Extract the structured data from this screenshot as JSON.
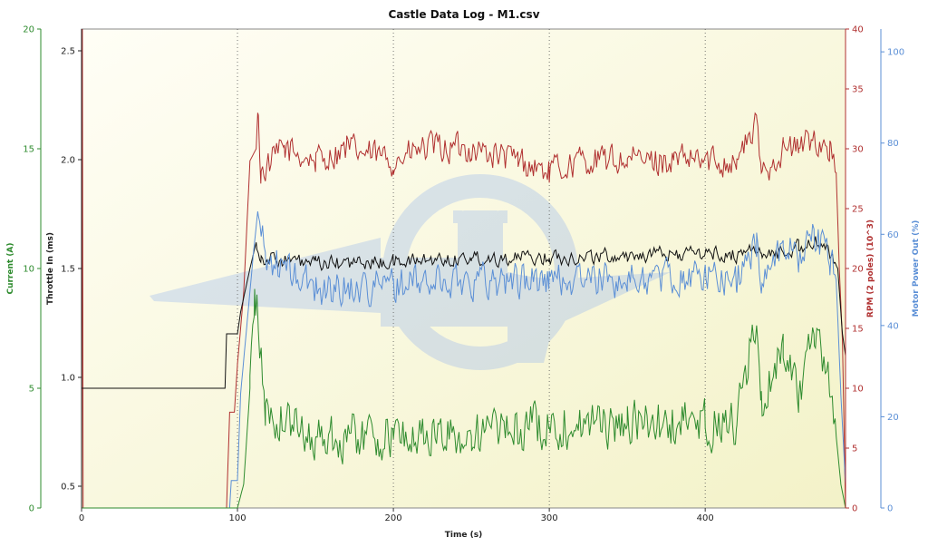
{
  "chart_data": {
    "type": "line",
    "title": "Castle Data Log - M1.csv",
    "xlabel": "Time (s)",
    "xlim": [
      0,
      490
    ],
    "x_ticks": [
      0,
      100,
      200,
      300,
      400
    ],
    "grid_x": true,
    "grid_y": false,
    "axes": {
      "current": {
        "label": "Current (A)",
        "range": [
          0,
          20
        ],
        "ticks": [
          0,
          5,
          10,
          15,
          20
        ],
        "side": "left",
        "color": "#2e8b2e"
      },
      "throttle": {
        "label": "Throttle In (ms)",
        "range": [
          0.4,
          2.6
        ],
        "ticks": [
          0.5,
          1.0,
          1.5,
          2.0,
          2.5
        ],
        "side": "left",
        "color": "#222222"
      },
      "rpm": {
        "label": "RPM (2 poles) (10^3)",
        "range": [
          0,
          40
        ],
        "ticks": [
          0,
          5,
          10,
          15,
          20,
          25,
          30,
          35,
          40
        ],
        "side": "right",
        "color": "#b03030"
      },
      "power": {
        "label": "Motor Power Out (%)",
        "range": [
          0,
          105
        ],
        "ticks": [
          0,
          20,
          40,
          60,
          80,
          100
        ],
        "side": "right",
        "color": "#5b8fd6"
      }
    },
    "series": [
      {
        "key": "rpm",
        "name": "RPM (2 poles) (10^3)",
        "axis": "rpm",
        "color": "#b03030",
        "points": [
          [
            0,
            0
          ],
          [
            0.5,
            40
          ],
          [
            1,
            0
          ],
          [
            93,
            0
          ],
          [
            95,
            8
          ],
          [
            98,
            8
          ],
          [
            100,
            12
          ],
          [
            104,
            18
          ],
          [
            108,
            29
          ],
          [
            112,
            30
          ],
          [
            113,
            33
          ],
          [
            115,
            28
          ],
          [
            130,
            30
          ],
          [
            150,
            29
          ],
          [
            170,
            30
          ],
          [
            200,
            29
          ],
          [
            220,
            30
          ],
          [
            250,
            30
          ],
          [
            280,
            29
          ],
          [
            300,
            28
          ],
          [
            320,
            29
          ],
          [
            350,
            29
          ],
          [
            380,
            29
          ],
          [
            400,
            29
          ],
          [
            420,
            29
          ],
          [
            433,
            32
          ],
          [
            436,
            28
          ],
          [
            450,
            30
          ],
          [
            460,
            30
          ],
          [
            470,
            31
          ],
          [
            480,
            30
          ],
          [
            484,
            28
          ],
          [
            486,
            20
          ],
          [
            488,
            14
          ],
          [
            490,
            0
          ]
        ],
        "noise": 1.3,
        "noise_start": 113,
        "noise_end": 484
      },
      {
        "key": "throttle",
        "name": "Throttle In (ms)",
        "axis": "throttle",
        "color": "#111111",
        "points": [
          [
            0,
            0.95
          ],
          [
            92,
            0.95
          ],
          [
            93,
            1.2
          ],
          [
            100,
            1.2
          ],
          [
            102,
            1.3
          ],
          [
            108,
            1.5
          ],
          [
            112,
            1.62
          ],
          [
            115,
            1.55
          ],
          [
            150,
            1.52
          ],
          [
            200,
            1.53
          ],
          [
            250,
            1.55
          ],
          [
            300,
            1.55
          ],
          [
            350,
            1.56
          ],
          [
            400,
            1.57
          ],
          [
            420,
            1.56
          ],
          [
            433,
            1.6
          ],
          [
            436,
            1.55
          ],
          [
            460,
            1.6
          ],
          [
            470,
            1.62
          ],
          [
            480,
            1.57
          ],
          [
            485,
            1.5
          ],
          [
            488,
            1.2
          ],
          [
            490,
            1.1
          ]
        ],
        "noise": 0.035,
        "noise_start": 112,
        "noise_end": 484
      },
      {
        "key": "power",
        "name": "Motor Power Out (%)",
        "axis": "power",
        "color": "#5b8fd6",
        "points": [
          [
            0,
            0
          ],
          [
            95,
            0
          ],
          [
            96,
            6
          ],
          [
            100,
            6
          ],
          [
            102,
            25
          ],
          [
            106,
            40
          ],
          [
            110,
            55
          ],
          [
            113,
            65
          ],
          [
            118,
            55
          ],
          [
            150,
            48
          ],
          [
            200,
            49
          ],
          [
            250,
            50
          ],
          [
            300,
            50
          ],
          [
            350,
            50
          ],
          [
            400,
            51
          ],
          [
            420,
            50
          ],
          [
            433,
            58
          ],
          [
            436,
            50
          ],
          [
            450,
            58
          ],
          [
            460,
            55
          ],
          [
            470,
            60
          ],
          [
            480,
            55
          ],
          [
            484,
            50
          ],
          [
            487,
            25
          ],
          [
            490,
            5
          ]
        ],
        "noise": 4.0,
        "noise_start": 113,
        "noise_end": 484
      },
      {
        "key": "current",
        "name": "Current (A)",
        "axis": "current",
        "color": "#2e8b2e",
        "points": [
          [
            0,
            0
          ],
          [
            100,
            0
          ],
          [
            104,
            1
          ],
          [
            108,
            5
          ],
          [
            111,
            9
          ],
          [
            113,
            8
          ],
          [
            118,
            4
          ],
          [
            150,
            3
          ],
          [
            200,
            3
          ],
          [
            250,
            3
          ],
          [
            300,
            3.5
          ],
          [
            350,
            3.5
          ],
          [
            400,
            3.5
          ],
          [
            420,
            3.5
          ],
          [
            433,
            8
          ],
          [
            436,
            4
          ],
          [
            450,
            7
          ],
          [
            460,
            5
          ],
          [
            470,
            7
          ],
          [
            480,
            5
          ],
          [
            484,
            3
          ],
          [
            487,
            1
          ],
          [
            490,
            0
          ]
        ],
        "noise": 1.0,
        "noise_start": 108,
        "noise_end": 484
      }
    ]
  }
}
